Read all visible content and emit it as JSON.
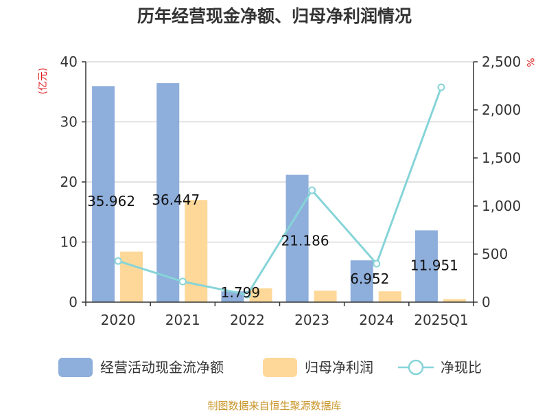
{
  "title": "历年经营现金净额、归母净利润情况",
  "left_unit": "(亿元)",
  "right_unit": "%",
  "source": "制图数据来自恒生聚源数据库",
  "chart_data": {
    "type": "bar",
    "categories": [
      "2020",
      "2021",
      "2022",
      "2023",
      "2024",
      "2025Q1"
    ],
    "series": [
      {
        "name": "经营活动现金流净额",
        "kind": "bar",
        "axis": "left",
        "color": "#8eaedb",
        "values": [
          35.962,
          36.447,
          1.799,
          21.186,
          6.952,
          11.951
        ],
        "labels": [
          "35.962",
          "36.447",
          "1.799",
          "21.186",
          "6.952",
          "11.951"
        ]
      },
      {
        "name": "归母净利润",
        "kind": "bar",
        "axis": "left",
        "color": "#fdd899",
        "values": [
          8.4,
          17.0,
          2.3,
          1.9,
          1.8,
          0.5
        ]
      },
      {
        "name": "净现比",
        "kind": "line",
        "axis": "right",
        "color": "#86d4d8",
        "values": [
          428,
          214,
          78,
          1163,
          400,
          2235
        ]
      }
    ],
    "left_axis": {
      "ylim": [
        0,
        40
      ],
      "ticks": [
        "0",
        "10",
        "20",
        "30",
        "40"
      ]
    },
    "right_axis": {
      "ylim": [
        0,
        2500
      ],
      "ticks": [
        "0",
        "500",
        "1,000",
        "1,500",
        "2,000",
        "2,500"
      ]
    },
    "grid": true,
    "legend_position": "bottom"
  }
}
